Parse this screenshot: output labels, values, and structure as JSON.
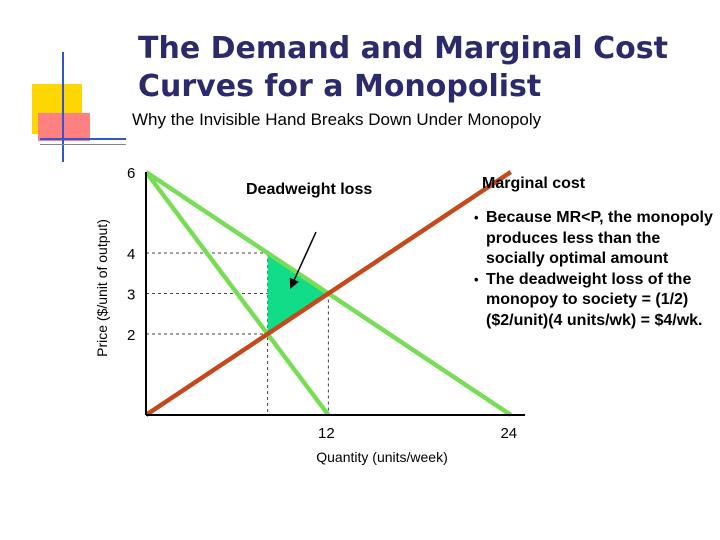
{
  "title_lines": [
    "The Demand and Marginal Cost",
    "Curves for a Monopolist"
  ],
  "subtitle": "Why the Invisible Hand Breaks Down Under Monopoly",
  "colors": {
    "title": "#2b2b6b",
    "demand": "#77dd55",
    "marginal_cost": "#c24a1c",
    "deadweight": "#11dd88",
    "deco_yellow": "#ffd700",
    "deco_red": "#ff8080",
    "deco_blue": "#3355cc"
  },
  "chart_data": {
    "type": "line",
    "xlabel": "Quantity (units/week)",
    "ylabel": "Price ($/unit of output)",
    "x_ticks": [
      12,
      24
    ],
    "y_ticks": [
      2,
      3,
      4,
      6
    ],
    "xlim": [
      0,
      24
    ],
    "ylim": [
      0,
      6
    ],
    "series": [
      {
        "name": "",
        "role": "demand",
        "points": [
          [
            0,
            6
          ],
          [
            24,
            0
          ]
        ]
      },
      {
        "name": "",
        "role": "marginal_revenue",
        "points": [
          [
            0,
            6
          ],
          [
            12,
            0
          ]
        ]
      },
      {
        "name": "Marginal cost",
        "role": "marginal_cost",
        "points": [
          [
            0,
            0
          ],
          [
            24,
            6
          ]
        ]
      }
    ],
    "deadweight_triangle": [
      [
        8,
        4
      ],
      [
        8,
        2
      ],
      [
        12,
        3
      ]
    ],
    "guides": {
      "h_levels": [
        4,
        3,
        2
      ],
      "v_levels": [
        8,
        12
      ]
    },
    "annotations": {
      "deadweight_label": "Deadweight loss",
      "marginal_cost_label": "Marginal cost"
    },
    "notes": [
      "Because MR<P, the monopoly produces less than the socially optimal amount",
      "The deadweight loss of the monopoy to society = (1/2)($2/unit)(4 units/wk) = $4/wk."
    ]
  }
}
